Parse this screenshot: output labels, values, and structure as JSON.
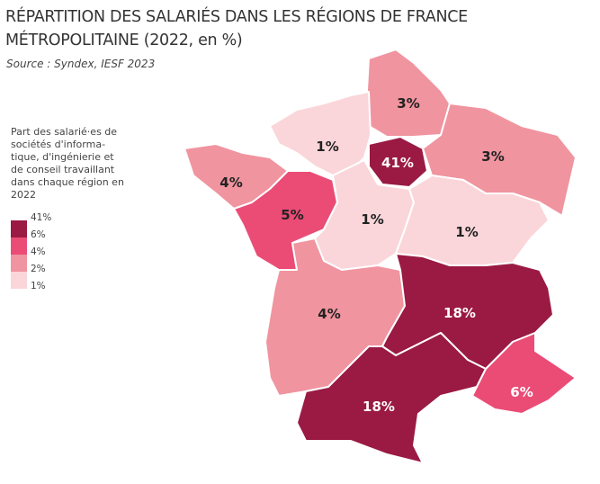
{
  "title_line1": "RÉPARTITION DES SALARIÉS DANS LES RÉGIONS DE FRANCE",
  "title_line2": "MÉTROPOLITAINE (2022, en %)",
  "source": "Source : Syndex, IESF 2023",
  "legend": {
    "title": "Part des salarié·es de sociétés d'informa-tique, d'ingénierie et de conseil travaillant dans chaque région en 2022",
    "breaks": [
      "41%",
      "6%",
      "4%",
      "2%",
      "1%"
    ],
    "colors": [
      "#9a1a44",
      "#ea4c76",
      "#f0949f",
      "#fad6da"
    ]
  },
  "regions": [
    {
      "name": "Hauts-de-France",
      "label": "3%",
      "color": "#f0949f"
    },
    {
      "name": "Normandie",
      "label": "1%",
      "color": "#fad6da"
    },
    {
      "name": "Île-de-France",
      "label": "41%",
      "color": "#9a1a44"
    },
    {
      "name": "Grand Est",
      "label": "3%",
      "color": "#f0949f"
    },
    {
      "name": "Bretagne",
      "label": "4%",
      "color": "#f0949f"
    },
    {
      "name": "Pays de la Loire",
      "label": "5%",
      "color": "#ea4c76"
    },
    {
      "name": "Centre-Val de Loire",
      "label": "1%",
      "color": "#fad6da"
    },
    {
      "name": "Bourgogne-Franche-Comté",
      "label": "1%",
      "color": "#fad6da"
    },
    {
      "name": "Nouvelle-Aquitaine",
      "label": "4%",
      "color": "#f0949f"
    },
    {
      "name": "Auvergne-Rhône-Alpes",
      "label": "18%",
      "color": "#9a1a44"
    },
    {
      "name": "Occitanie",
      "label": "18%",
      "color": "#9a1a44"
    },
    {
      "name": "Provence-Alpes-Côte d'Azur",
      "label": "6%",
      "color": "#ea4c76"
    }
  ]
}
